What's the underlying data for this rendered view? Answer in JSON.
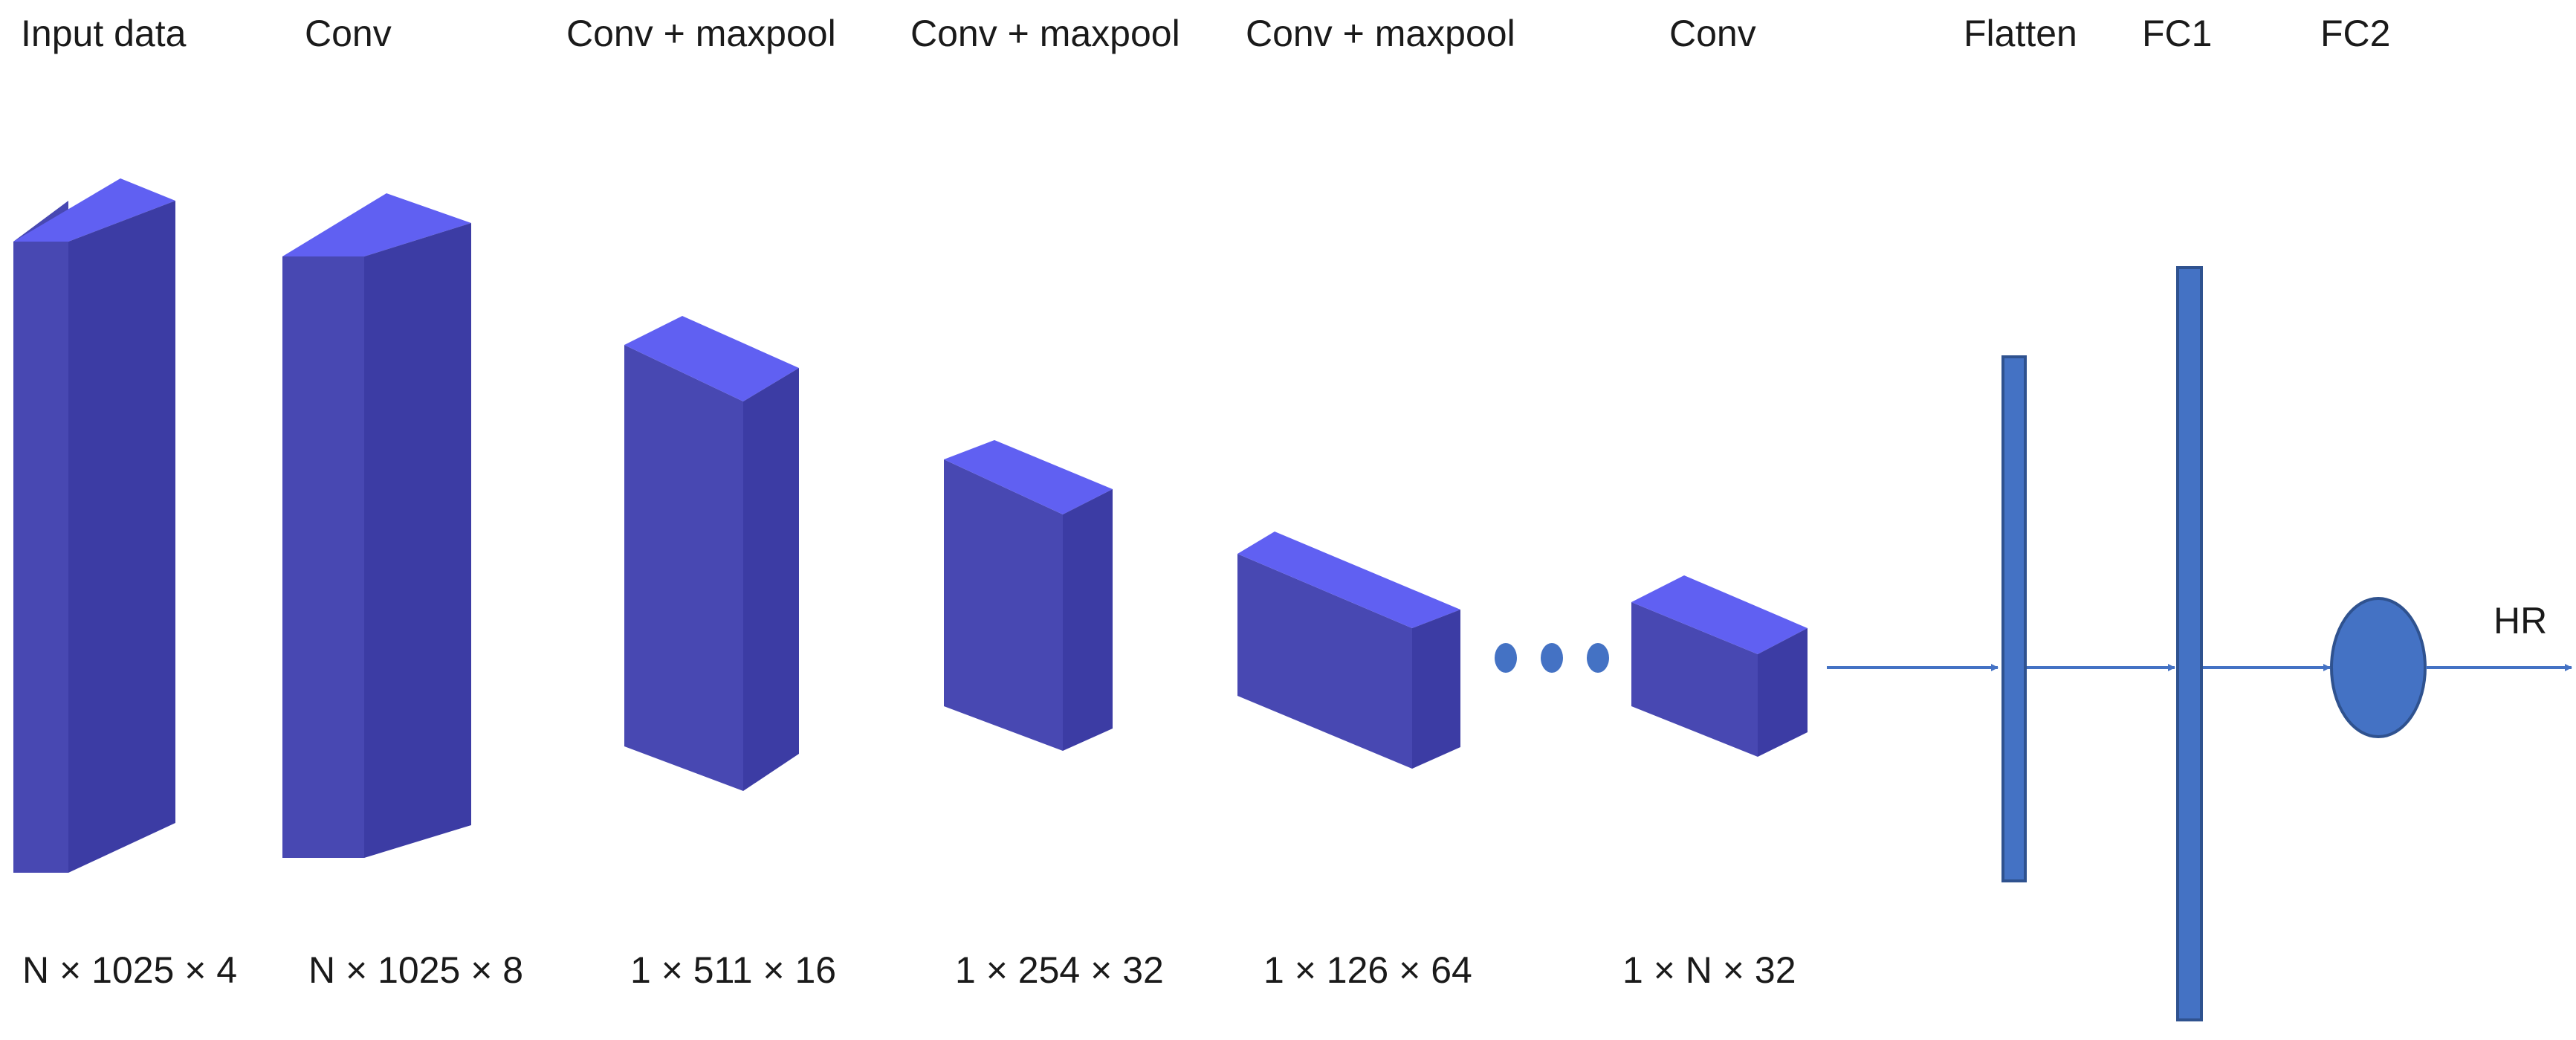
{
  "colors": {
    "block_front": "#4848B2",
    "block_top": "#6060F2",
    "block_side": "#3C3CA4",
    "dense": "#4472C4",
    "dense_stroke": "#2F528F",
    "arrow": "#4472C4",
    "text": "#1a1a1a"
  },
  "layers": [
    {
      "title": "Input data",
      "shape": "N × 1025 × 4"
    },
    {
      "title": "Conv",
      "shape": "N × 1025 × 8"
    },
    {
      "title": "Conv + maxpool",
      "shape": "1 × 511 × 16"
    },
    {
      "title": "Conv + maxpool",
      "shape": "1 × 254 × 32"
    },
    {
      "title": "Conv + maxpool",
      "shape": "1 × 126 × 64"
    },
    {
      "title": "Conv",
      "shape": "1 × N × 32"
    }
  ],
  "dense_layers": [
    {
      "title": "Flatten"
    },
    {
      "title": "FC1"
    },
    {
      "title": "FC2"
    }
  ],
  "output_label": "HR",
  "ellipsis_icon": "ellipsis-dots"
}
